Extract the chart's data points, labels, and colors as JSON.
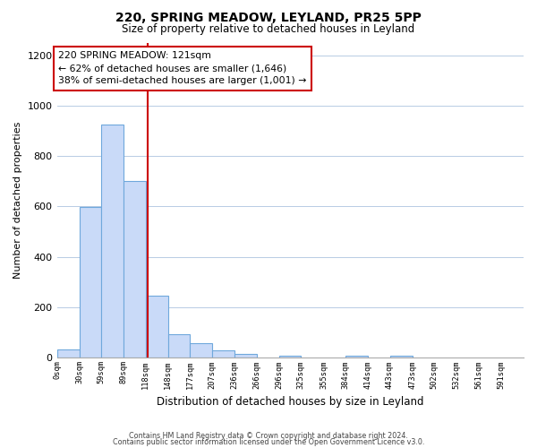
{
  "title": "220, SPRING MEADOW, LEYLAND, PR25 5PP",
  "subtitle": "Size of property relative to detached houses in Leyland",
  "xlabel": "Distribution of detached houses by size in Leyland",
  "ylabel": "Number of detached properties",
  "bin_edges": [
    0,
    30,
    59,
    89,
    118,
    148,
    177,
    207,
    236,
    266,
    296,
    325,
    355,
    384,
    414,
    443,
    473,
    502,
    532,
    561,
    591
  ],
  "bar_heights": [
    35,
    597,
    925,
    700,
    245,
    95,
    57,
    30,
    14,
    0,
    10,
    0,
    0,
    10,
    0,
    10,
    0,
    0,
    0,
    0
  ],
  "bar_color": "#c9daf8",
  "bar_edge_color": "#6fa8dc",
  "property_line_x": 121,
  "property_line_color": "#cc0000",
  "annotation_line1": "220 SPRING MEADOW: 121sqm",
  "annotation_line2": "← 62% of detached houses are smaller (1,646)",
  "annotation_line3": "38% of semi-detached houses are larger (1,001) →",
  "annotation_box_color": "#cc0000",
  "ylim": [
    0,
    1250
  ],
  "yticks": [
    0,
    200,
    400,
    600,
    800,
    1000,
    1200
  ],
  "tick_labels": [
    "0sqm",
    "30sqm",
    "59sqm",
    "89sqm",
    "118sqm",
    "148sqm",
    "177sqm",
    "207sqm",
    "236sqm",
    "266sqm",
    "296sqm",
    "325sqm",
    "355sqm",
    "384sqm",
    "414sqm",
    "443sqm",
    "473sqm",
    "502sqm",
    "532sqm",
    "561sqm",
    "591sqm"
  ],
  "footer_line1": "Contains HM Land Registry data © Crown copyright and database right 2024.",
  "footer_line2": "Contains public sector information licensed under the Open Government Licence v3.0.",
  "background_color": "#ffffff",
  "grid_color": "#b8cce4",
  "xlim": [
    0,
    621
  ]
}
